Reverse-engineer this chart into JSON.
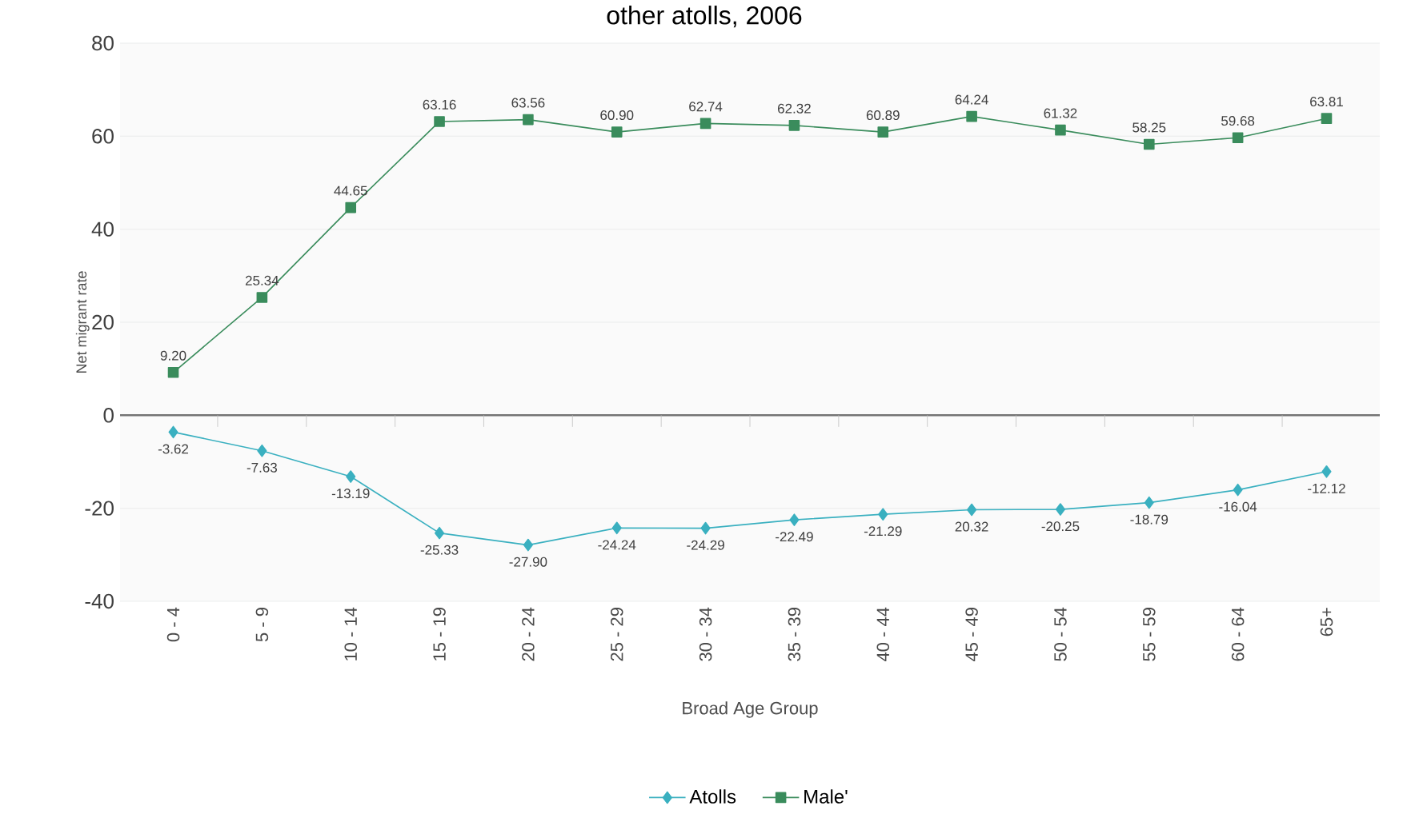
{
  "chart_data": {
    "type": "line",
    "title": "other atolls, 2006",
    "xlabel": "Broad Age Group",
    "ylabel": "Net migrant rate",
    "categories": [
      "0 - 4",
      "5 - 9",
      "10 - 14",
      "15 - 19",
      "20 - 24",
      "25 - 29",
      "30 - 34",
      "35 - 39",
      "40 - 44",
      "45 - 49",
      "50 - 54",
      "55 - 59",
      "60 - 64",
      "65+"
    ],
    "series": [
      {
        "name": "Atolls",
        "color": "#3ab0c0",
        "marker": "diamond",
        "values": [
          -3.62,
          -7.63,
          -13.19,
          -25.33,
          -27.9,
          -24.24,
          -24.29,
          -22.49,
          -21.29,
          -20.32,
          -20.25,
          -18.79,
          -16.04,
          -12.12
        ],
        "value_labels": [
          "-3.62",
          "-7.63",
          "-13.19",
          "-25.33",
          "-27.90",
          "-24.24",
          "-24.29",
          "-22.49",
          "-21.29",
          null,
          "-20.25",
          "-18.79",
          "-16.04",
          "-12.12"
        ]
      },
      {
        "name": "Male'",
        "color": "#3a8c5c",
        "marker": "square",
        "values": [
          9.2,
          25.34,
          44.65,
          63.16,
          63.56,
          60.9,
          62.74,
          62.32,
          60.89,
          64.24,
          61.32,
          58.25,
          59.68,
          63.81
        ],
        "value_labels": [
          "9.20",
          "25.34",
          "44.65",
          "63.16",
          "63.56",
          "60.90",
          "62.74",
          "62.32",
          "60.89",
          "64.24",
          "61.32",
          "58.25",
          "59.68",
          "63.81"
        ]
      }
    ],
    "ylim": [
      -40,
      80
    ],
    "yticks": [
      -40,
      -20,
      0,
      20,
      40,
      60,
      80
    ],
    "annotations": [
      {
        "text": "20.32",
        "x": "45 - 49",
        "y": -20.32
      }
    ],
    "grid": "y",
    "legend": "bottom",
    "line_style": "solid"
  }
}
